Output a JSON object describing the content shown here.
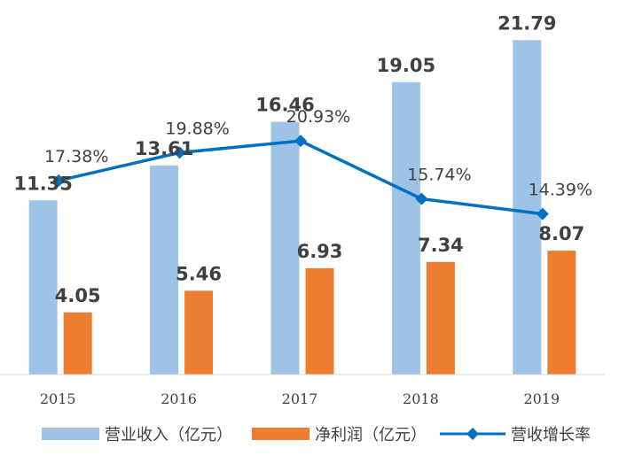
{
  "chart_data": {
    "type": "bar",
    "categories": [
      "2015",
      "2016",
      "2017",
      "2018",
      "2019"
    ],
    "series": [
      {
        "name": "营业收入（亿元）",
        "type": "bar",
        "axis": "left",
        "color": "#9DC3E6",
        "values": [
          11.35,
          13.61,
          16.46,
          19.05,
          21.79
        ],
        "labels": [
          "11.35",
          "13.61",
          "16.46",
          "19.05",
          "21.79"
        ]
      },
      {
        "name": "净利润（亿元）",
        "type": "bar",
        "axis": "left",
        "color": "#ED7D31",
        "values": [
          4.05,
          5.46,
          6.93,
          7.34,
          8.07
        ],
        "labels": [
          "4.05",
          "5.46",
          "6.93",
          "7.34",
          "8.07"
        ]
      },
      {
        "name": "营收增长率",
        "type": "line",
        "axis": "right",
        "color": "#0070C0",
        "marker": "diamond",
        "values": [
          17.38,
          19.88,
          20.93,
          15.74,
          14.39
        ],
        "labels": [
          "17.38%",
          "19.88%",
          "20.93%",
          "15.74%",
          "14.39%"
        ]
      }
    ],
    "ylim": [
      0,
      24
    ],
    "y2lim": [
      0,
      33
    ],
    "grid": false,
    "legend": "bottom"
  }
}
